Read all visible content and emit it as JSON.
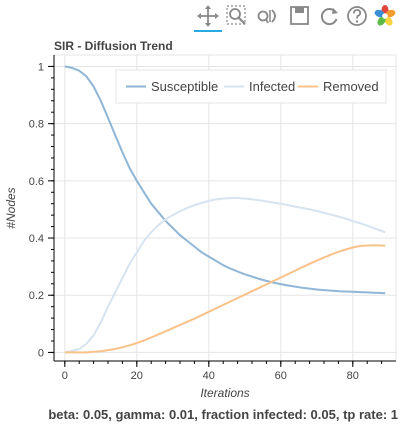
{
  "toolbar": {
    "tools": [
      {
        "id": "pan",
        "label": "pan-icon"
      },
      {
        "id": "box-zoom",
        "label": "box-zoom-icon"
      },
      {
        "id": "wheel-zoom",
        "label": "wheel-zoom-icon"
      },
      {
        "id": "save",
        "label": "save-icon"
      },
      {
        "id": "reset",
        "label": "reset-icon"
      },
      {
        "id": "help",
        "label": "help-icon"
      },
      {
        "id": "bokeh-logo",
        "label": "bokeh-logo-icon"
      }
    ],
    "active": "pan",
    "active_color": "#26aae1"
  },
  "chart_data": {
    "type": "line",
    "title": "SIR - Diffusion Trend",
    "xlabel": "Iterations",
    "ylabel": "#Nodes",
    "xlim": [
      -3,
      92
    ],
    "ylim": [
      -0.03,
      1.04
    ],
    "xticks": [
      0,
      20,
      40,
      60,
      80
    ],
    "yticks": [
      0,
      0.2,
      0.4,
      0.6,
      0.8,
      1
    ],
    "legend_position": "top-right",
    "grid": true,
    "series": [
      {
        "name": "Susceptible",
        "color": "#8fb6d6",
        "x": [
          0,
          2,
          4,
          6,
          8,
          10,
          12,
          14,
          16,
          18,
          20,
          22,
          24,
          26,
          28,
          30,
          32,
          34,
          36,
          38,
          40,
          42,
          44,
          46,
          48,
          50,
          52,
          54,
          56,
          58,
          60,
          62,
          64,
          66,
          68,
          70,
          72,
          74,
          76,
          78,
          80,
          82,
          84,
          86,
          89
        ],
        "y": [
          1.0,
          0.995,
          0.985,
          0.965,
          0.93,
          0.88,
          0.82,
          0.76,
          0.7,
          0.645,
          0.6,
          0.56,
          0.52,
          0.49,
          0.46,
          0.435,
          0.41,
          0.39,
          0.37,
          0.35,
          0.335,
          0.32,
          0.305,
          0.293,
          0.283,
          0.273,
          0.265,
          0.257,
          0.25,
          0.244,
          0.239,
          0.234,
          0.23,
          0.226,
          0.223,
          0.22,
          0.218,
          0.216,
          0.214,
          0.213,
          0.212,
          0.211,
          0.21,
          0.209,
          0.207
        ]
      },
      {
        "name": "Infected",
        "color": "#d7e3f0",
        "x": [
          0,
          2,
          4,
          6,
          8,
          10,
          12,
          14,
          16,
          18,
          20,
          22,
          24,
          26,
          28,
          30,
          32,
          34,
          36,
          38,
          40,
          42,
          44,
          46,
          48,
          50,
          52,
          54,
          56,
          58,
          60,
          62,
          64,
          66,
          68,
          70,
          72,
          74,
          76,
          78,
          80,
          82,
          84,
          86,
          89
        ],
        "y": [
          0.0,
          0.005,
          0.012,
          0.03,
          0.06,
          0.105,
          0.16,
          0.21,
          0.26,
          0.31,
          0.35,
          0.39,
          0.42,
          0.445,
          0.465,
          0.48,
          0.493,
          0.505,
          0.515,
          0.523,
          0.53,
          0.535,
          0.538,
          0.54,
          0.54,
          0.538,
          0.535,
          0.532,
          0.528,
          0.524,
          0.52,
          0.515,
          0.51,
          0.505,
          0.5,
          0.495,
          0.488,
          0.482,
          0.475,
          0.468,
          0.46,
          0.452,
          0.443,
          0.434,
          0.42
        ]
      },
      {
        "name": "Removed",
        "color": "#f9c28a",
        "x": [
          0,
          2,
          4,
          6,
          8,
          10,
          12,
          14,
          16,
          18,
          20,
          22,
          24,
          26,
          28,
          30,
          32,
          34,
          36,
          38,
          40,
          42,
          44,
          46,
          48,
          50,
          52,
          54,
          56,
          58,
          60,
          62,
          64,
          66,
          68,
          70,
          72,
          74,
          76,
          78,
          80,
          82,
          84,
          86,
          89
        ],
        "y": [
          0.0,
          0.0,
          0.0,
          0.0,
          0.002,
          0.004,
          0.008,
          0.012,
          0.018,
          0.025,
          0.033,
          0.042,
          0.052,
          0.063,
          0.074,
          0.085,
          0.096,
          0.107,
          0.118,
          0.13,
          0.142,
          0.154,
          0.166,
          0.178,
          0.19,
          0.202,
          0.214,
          0.226,
          0.238,
          0.25,
          0.262,
          0.274,
          0.286,
          0.298,
          0.31,
          0.321,
          0.332,
          0.342,
          0.352,
          0.36,
          0.367,
          0.372,
          0.374,
          0.375,
          0.373
        ]
      }
    ]
  },
  "caption": "beta: 0.05, gamma: 0.01, fraction infected: 0.05, tp rate: 1"
}
